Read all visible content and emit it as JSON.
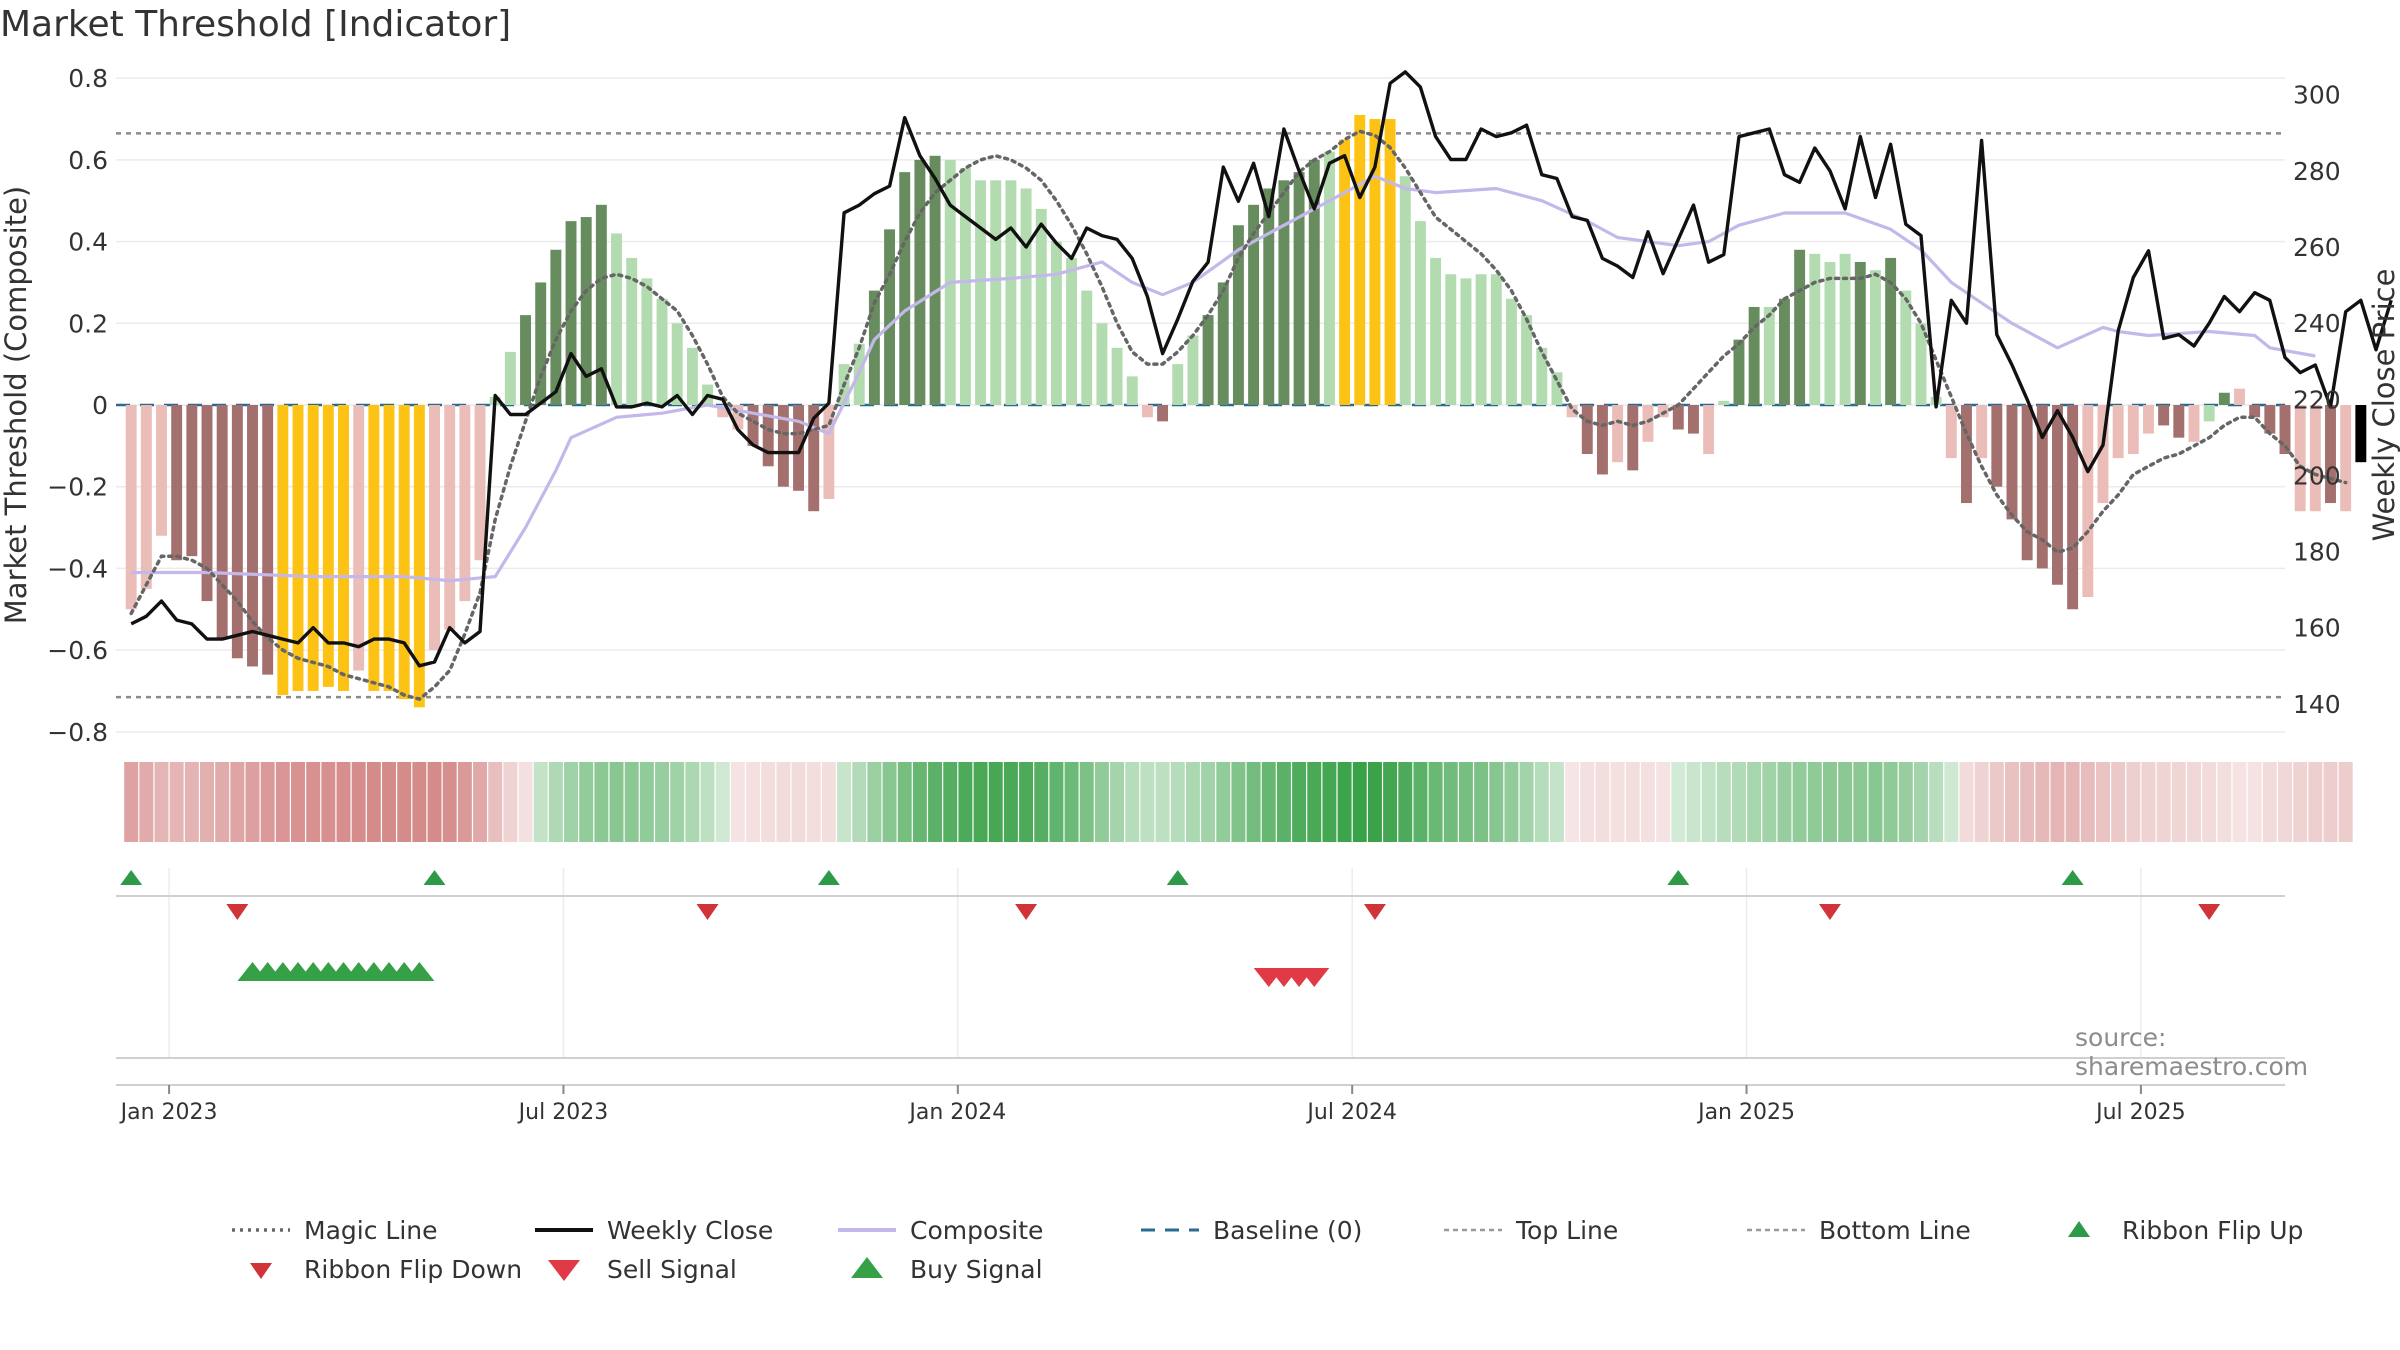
{
  "title": "Market Threshold [Indicator]",
  "source": "source: sharemaestro.com",
  "chart_data": {
    "type": "bar+line",
    "title": "Market Threshold [Indicator]",
    "left_axis": {
      "label": "Market Threshold (Composite)",
      "ylim": [
        -0.82,
        0.82
      ],
      "ticks": [
        0.8,
        0.6,
        0.4,
        0.2,
        0,
        -0.2,
        -0.4,
        -0.6,
        -0.8
      ],
      "tick_labels": [
        "0.8",
        "0.6",
        "0.4",
        "0.2",
        "0",
        "−0.2",
        "−0.4",
        "−0.6",
        "−0.8"
      ]
    },
    "right_axis": {
      "label": "Weekly Close Price",
      "ylim": [
        130.5,
        306.5
      ],
      "ticks": [
        300,
        280,
        260,
        240,
        220,
        200,
        180,
        160,
        140
      ],
      "tick_labels": [
        "300",
        "280",
        "260",
        "240",
        "220",
        "200",
        "180",
        "160",
        "140"
      ]
    },
    "x_axis": {
      "ticks": [
        2.5,
        28.5,
        54.5,
        80.5,
        106.5,
        132.5
      ],
      "tick_labels": [
        "Jan 2023",
        "Jul 2023",
        "Jan 2024",
        "Jul 2024",
        "Jan 2025",
        "Jul 2025"
      ],
      "range": [
        -1,
        142
      ]
    },
    "top_line": 0.665,
    "bottom_line": -0.715,
    "baseline": 0,
    "bar_values": [
      -0.5,
      -0.45,
      -0.32,
      -0.38,
      -0.37,
      -0.48,
      -0.57,
      -0.62,
      -0.64,
      -0.66,
      -0.71,
      -0.7,
      -0.7,
      -0.69,
      -0.7,
      -0.65,
      -0.7,
      -0.7,
      -0.72,
      -0.74,
      -0.6,
      -0.55,
      -0.48,
      -0.38,
      0.02,
      0.13,
      0.22,
      0.3,
      0.38,
      0.45,
      0.46,
      0.49,
      0.42,
      0.36,
      0.31,
      0.26,
      0.2,
      0.14,
      0.05,
      -0.03,
      -0.06,
      -0.1,
      -0.15,
      -0.2,
      -0.21,
      -0.26,
      -0.23,
      0.1,
      0.15,
      0.28,
      0.43,
      0.57,
      0.6,
      0.61,
      0.6,
      0.58,
      0.55,
      0.55,
      0.55,
      0.53,
      0.48,
      0.4,
      0.36,
      0.28,
      0.2,
      0.14,
      0.07,
      -0.03,
      -0.04,
      0.1,
      0.17,
      0.22,
      0.3,
      0.44,
      0.49,
      0.53,
      0.55,
      0.57,
      0.6,
      0.62,
      0.65,
      0.71,
      0.7,
      0.7,
      0.56,
      0.45,
      0.36,
      0.32,
      0.31,
      0.32,
      0.32,
      0.26,
      0.22,
      0.14,
      0.08,
      -0.03,
      -0.12,
      -0.17,
      -0.14,
      -0.16,
      -0.09,
      -0.03,
      -0.06,
      -0.07,
      -0.12,
      0.01,
      0.16,
      0.24,
      0.24,
      0.26,
      0.38,
      0.37,
      0.35,
      0.37,
      0.35,
      0.33,
      0.36,
      0.28,
      0.2,
      0.02,
      -0.13,
      -0.24,
      -0.13,
      -0.2,
      -0.28,
      -0.38,
      -0.4,
      -0.44,
      -0.5,
      -0.47,
      -0.24,
      -0.13,
      -0.12,
      -0.07,
      -0.05,
      -0.08,
      -0.09,
      -0.04,
      0.03,
      0.04,
      -0.03,
      -0.07,
      -0.12,
      -0.26,
      -0.26,
      -0.24,
      -0.26,
      -0.14
    ],
    "bar_colors": [
      "#ebbdb8",
      "#ebbdb8",
      "#ebbdb8",
      "#a3706e",
      "#a3706e",
      "#a3706e",
      "#a3706e",
      "#a3706e",
      "#a3706e",
      "#a3706e",
      "#fcc315",
      "#fcc315",
      "#fcc315",
      "#fcc315",
      "#fcc315",
      "#ebbdb8",
      "#fcc315",
      "#fcc315",
      "#fcc315",
      "#fcc315",
      "#ebbdb8",
      "#ebbdb8",
      "#ebbdb8",
      "#ebbdb8",
      "#b2dbaf",
      "#b2dbaf",
      "#678d5f",
      "#678d5f",
      "#678d5f",
      "#678d5f",
      "#678d5f",
      "#678d5f",
      "#b2dbaf",
      "#b2dbaf",
      "#b2dbaf",
      "#b2dbaf",
      "#b2dbaf",
      "#b2dbaf",
      "#b2dbaf",
      "#ebbdb8",
      "#ebbdb8",
      "#a3706e",
      "#a3706e",
      "#a3706e",
      "#a3706e",
      "#a3706e",
      "#ebbdb8",
      "#b2dbaf",
      "#b2dbaf",
      "#678d5f",
      "#678d5f",
      "#678d5f",
      "#678d5f",
      "#678d5f",
      "#b2dbaf",
      "#b2dbaf",
      "#b2dbaf",
      "#b2dbaf",
      "#b2dbaf",
      "#b2dbaf",
      "#b2dbaf",
      "#b2dbaf",
      "#b2dbaf",
      "#b2dbaf",
      "#b2dbaf",
      "#b2dbaf",
      "#b2dbaf",
      "#ebbdb8",
      "#a3706e",
      "#b2dbaf",
      "#b2dbaf",
      "#678d5f",
      "#678d5f",
      "#678d5f",
      "#678d5f",
      "#678d5f",
      "#678d5f",
      "#678d5f",
      "#678d5f",
      "#b2dbaf",
      "#fcc315",
      "#fcc315",
      "#fcc315",
      "#fcc315",
      "#b2dbaf",
      "#b2dbaf",
      "#b2dbaf",
      "#b2dbaf",
      "#b2dbaf",
      "#b2dbaf",
      "#b2dbaf",
      "#b2dbaf",
      "#b2dbaf",
      "#b2dbaf",
      "#b2dbaf",
      "#ebbdb8",
      "#a3706e",
      "#a3706e",
      "#ebbdb8",
      "#a3706e",
      "#ebbdb8",
      "#ebbdb8",
      "#a3706e",
      "#a3706e",
      "#ebbdb8",
      "#b2dbaf",
      "#678d5f",
      "#678d5f",
      "#b2dbaf",
      "#678d5f",
      "#678d5f",
      "#b2dbaf",
      "#b2dbaf",
      "#b2dbaf",
      "#678d5f",
      "#b2dbaf",
      "#678d5f",
      "#b2dbaf",
      "#b2dbaf",
      "#b2dbaf",
      "#ebbdb8",
      "#a3706e",
      "#ebbdb8",
      "#a3706e",
      "#a3706e",
      "#a3706e",
      "#a3706e",
      "#a3706e",
      "#a3706e",
      "#ebbdb8",
      "#ebbdb8",
      "#ebbdb8",
      "#ebbdb8",
      "#ebbdb8",
      "#a3706e",
      "#a3706e",
      "#ebbdb8",
      "#b2dbaf",
      "#678d5f",
      "#ebbdb8",
      "#a3706e",
      "#a3706e",
      "#a3706e",
      "#ebbdb8",
      "#ebbdb8",
      "#a3706e",
      "#ebbdb8"
    ],
    "weekly_close": [
      161,
      163,
      167,
      162,
      161,
      157,
      157,
      158,
      159,
      158,
      157,
      156,
      160,
      156,
      156,
      155,
      157,
      157,
      156,
      150,
      151,
      160,
      156,
      159,
      221,
      216,
      216,
      219,
      222,
      232,
      226,
      228,
      218,
      218,
      219,
      218,
      221,
      216,
      221,
      220,
      212,
      208,
      206,
      206,
      206,
      215,
      219,
      269,
      271,
      274,
      276,
      294,
      284,
      278,
      271,
      268,
      265,
      262,
      265,
      260,
      266,
      261,
      257,
      265,
      263,
      262,
      257,
      247,
      232,
      241,
      251,
      256,
      281,
      272,
      282,
      268,
      291,
      280,
      270,
      282,
      284,
      273,
      281,
      303,
      306,
      302,
      289,
      283,
      283,
      291,
      289,
      290,
      292,
      279,
      278,
      268,
      267,
      257,
      255,
      252,
      264,
      253,
      262,
      271,
      256,
      258,
      289,
      290,
      291,
      279,
      277,
      286,
      280,
      270,
      289,
      273,
      287,
      266,
      263,
      218,
      246,
      240,
      288,
      237,
      229,
      220,
      210,
      217,
      210,
      201,
      208,
      238,
      252,
      259,
      236,
      237,
      234,
      240,
      247,
      243,
      248,
      246,
      231,
      227,
      229,
      218,
      243,
      246,
      233,
      246
    ],
    "magic_line": [
      -0.51,
      -0.44,
      -0.37,
      -0.37,
      -0.38,
      -0.4,
      -0.44,
      -0.48,
      -0.53,
      -0.57,
      -0.6,
      -0.62,
      -0.63,
      -0.64,
      -0.66,
      -0.67,
      -0.68,
      -0.69,
      -0.71,
      -0.72,
      -0.69,
      -0.65,
      -0.56,
      -0.46,
      -0.28,
      -0.15,
      -0.04,
      0.07,
      0.16,
      0.23,
      0.28,
      0.31,
      0.32,
      0.31,
      0.29,
      0.26,
      0.23,
      0.17,
      0.1,
      0.02,
      -0.02,
      -0.04,
      -0.06,
      -0.07,
      -0.07,
      -0.06,
      -0.05,
      0.05,
      0.14,
      0.25,
      0.32,
      0.4,
      0.47,
      0.52,
      0.55,
      0.58,
      0.6,
      0.61,
      0.6,
      0.58,
      0.55,
      0.5,
      0.44,
      0.37,
      0.29,
      0.2,
      0.13,
      0.1,
      0.1,
      0.13,
      0.17,
      0.22,
      0.28,
      0.36,
      0.42,
      0.47,
      0.52,
      0.57,
      0.6,
      0.62,
      0.65,
      0.67,
      0.66,
      0.63,
      0.58,
      0.52,
      0.46,
      0.43,
      0.4,
      0.37,
      0.33,
      0.28,
      0.21,
      0.13,
      0.06,
      -0.01,
      -0.04,
      -0.05,
      -0.04,
      -0.05,
      -0.04,
      -0.02,
      0.0,
      0.04,
      0.08,
      0.12,
      0.15,
      0.19,
      0.22,
      0.26,
      0.28,
      0.3,
      0.31,
      0.31,
      0.31,
      0.32,
      0.3,
      0.26,
      0.2,
      0.11,
      0.02,
      -0.07,
      -0.15,
      -0.22,
      -0.27,
      -0.31,
      -0.33,
      -0.36,
      -0.35,
      -0.31,
      -0.26,
      -0.22,
      -0.17,
      -0.15,
      -0.13,
      -0.12,
      -0.1,
      -0.08,
      -0.05,
      -0.03,
      -0.03,
      -0.07,
      -0.1,
      -0.15,
      -0.17,
      -0.18,
      -0.19
    ]
  },
  "composite_line_points": [
    [
      0,
      -0.41
    ],
    [
      5,
      -0.41
    ],
    [
      12,
      -0.42
    ],
    [
      18,
      -0.42
    ],
    [
      21,
      -0.43
    ],
    [
      24,
      -0.42
    ],
    [
      26,
      -0.3
    ],
    [
      28,
      -0.16
    ],
    [
      29,
      -0.08
    ],
    [
      32,
      -0.03
    ],
    [
      35,
      -0.02
    ],
    [
      38,
      0.0
    ],
    [
      41,
      -0.02
    ],
    [
      44,
      -0.04
    ],
    [
      46,
      -0.07
    ],
    [
      48,
      0.08
    ],
    [
      49,
      0.16
    ],
    [
      51,
      0.23
    ],
    [
      54,
      0.3
    ],
    [
      58,
      0.31
    ],
    [
      61,
      0.32
    ],
    [
      63,
      0.34
    ],
    [
      64,
      0.35
    ],
    [
      66,
      0.3
    ],
    [
      68,
      0.27
    ],
    [
      70,
      0.3
    ],
    [
      73,
      0.38
    ],
    [
      75,
      0.42
    ],
    [
      80,
      0.52
    ],
    [
      82,
      0.56
    ],
    [
      84,
      0.53
    ],
    [
      86,
      0.52
    ],
    [
      90,
      0.53
    ],
    [
      93,
      0.5
    ],
    [
      96,
      0.45
    ],
    [
      98,
      0.41
    ],
    [
      100,
      0.4
    ],
    [
      102,
      0.39
    ],
    [
      104,
      0.4
    ],
    [
      106,
      0.44
    ],
    [
      109,
      0.47
    ],
    [
      113,
      0.47
    ],
    [
      116,
      0.43
    ],
    [
      118,
      0.38
    ],
    [
      120,
      0.3
    ],
    [
      122,
      0.25
    ],
    [
      124,
      0.2
    ],
    [
      127,
      0.14
    ],
    [
      130,
      0.19
    ],
    [
      131,
      0.18
    ],
    [
      133,
      0.17
    ],
    [
      137,
      0.18
    ],
    [
      140,
      0.17
    ],
    [
      141,
      0.14
    ],
    [
      144,
      0.12
    ]
  ],
  "ribbon_flip_up": {
    "indexes": [
      0,
      20,
      46,
      69,
      102,
      128
    ]
  },
  "ribbon_flip_down": {
    "indexes": [
      7,
      38,
      59,
      82,
      112,
      137
    ]
  },
  "buy_signals": {
    "indexes": [
      8,
      9,
      10,
      11,
      12,
      13,
      14,
      15,
      16,
      17,
      18,
      19
    ]
  },
  "sell_signals": {
    "indexes": [
      75,
      76,
      77,
      78
    ]
  },
  "legend": {
    "items": [
      {
        "label": "Magic Line",
        "color": "#666666",
        "style": "dotted-line"
      },
      {
        "label": "Weekly Close",
        "color": "#111111",
        "style": "solid-line"
      },
      {
        "label": "Composite",
        "color": "#c4b8ea",
        "style": "solid-line"
      },
      {
        "label": "Baseline (0)",
        "color": "#2b6a8f",
        "style": "dashed-line"
      },
      {
        "label": "Top Line",
        "color": "#999999",
        "style": "dashed-line"
      },
      {
        "label": "Bottom Line",
        "color": "#999999",
        "style": "dashed-line"
      },
      {
        "label": "Ribbon Flip Up",
        "color": "#2e9a48",
        "style": "triangle-up"
      },
      {
        "label": "Ribbon Flip Down",
        "color": "#d13438",
        "style": "triangle-down"
      },
      {
        "label": "Sell Signal",
        "color": "#e03a46",
        "style": "triangle-down-large"
      },
      {
        "label": "Buy Signal",
        "color": "#36a046",
        "style": "triangle-up-large"
      }
    ]
  }
}
